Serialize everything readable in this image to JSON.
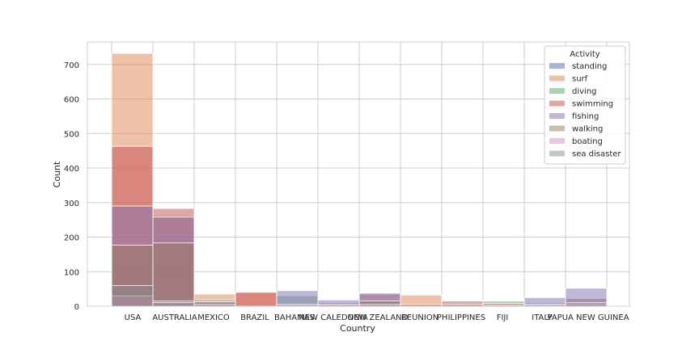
{
  "chart_data": {
    "type": "bar",
    "stacked": false,
    "overlaid": true,
    "xlabel": "Country",
    "ylabel": "Count",
    "ylim": [
      0,
      765
    ],
    "yticks": [
      0,
      100,
      200,
      300,
      400,
      500,
      600,
      700
    ],
    "grid": true,
    "legend_title": "Activity",
    "legend_position": "top-right",
    "categories": [
      "USA",
      "AUSTRALIA",
      "MEXICO",
      "BRAZIL",
      "BAHAMAS",
      "NEW CALEDONIA",
      "NEW ZEALAND",
      "REUNION",
      "PHILIPPINES",
      "FIJI",
      "ITALY",
      "PAPUA NEW GUINEA"
    ],
    "series": [
      {
        "name": "standing",
        "color": "#4c72b0",
        "values": [
          65,
          18,
          5,
          0,
          0,
          3,
          3,
          0,
          0,
          0,
          3,
          3
        ]
      },
      {
        "name": "surf",
        "color": "#dd8452",
        "values": [
          732,
          262,
          35,
          42,
          0,
          0,
          8,
          32,
          0,
          0,
          0,
          0
        ]
      },
      {
        "name": "diving",
        "color": "#55a868",
        "values": [
          45,
          20,
          8,
          0,
          30,
          8,
          5,
          0,
          3,
          15,
          10,
          5
        ]
      },
      {
        "name": "swimming",
        "color": "#c44e52",
        "values": [
          463,
          283,
          20,
          40,
          0,
          10,
          35,
          5,
          15,
          8,
          5,
          22
        ]
      },
      {
        "name": "fishing",
        "color": "#8172b3",
        "values": [
          290,
          258,
          15,
          0,
          45,
          18,
          38,
          0,
          0,
          0,
          25,
          52
        ]
      },
      {
        "name": "walking",
        "color": "#937860",
        "values": [
          177,
          183,
          12,
          0,
          0,
          5,
          15,
          0,
          0,
          0,
          0,
          5
        ]
      },
      {
        "name": "boating",
        "color": "#da8bc3",
        "values": [
          30,
          15,
          5,
          0,
          5,
          3,
          5,
          0,
          0,
          3,
          3,
          5
        ]
      },
      {
        "name": "sea disaster",
        "color": "#8c8c8c",
        "values": [
          60,
          10,
          5,
          0,
          0,
          5,
          5,
          0,
          5,
          0,
          5,
          10
        ]
      }
    ]
  }
}
